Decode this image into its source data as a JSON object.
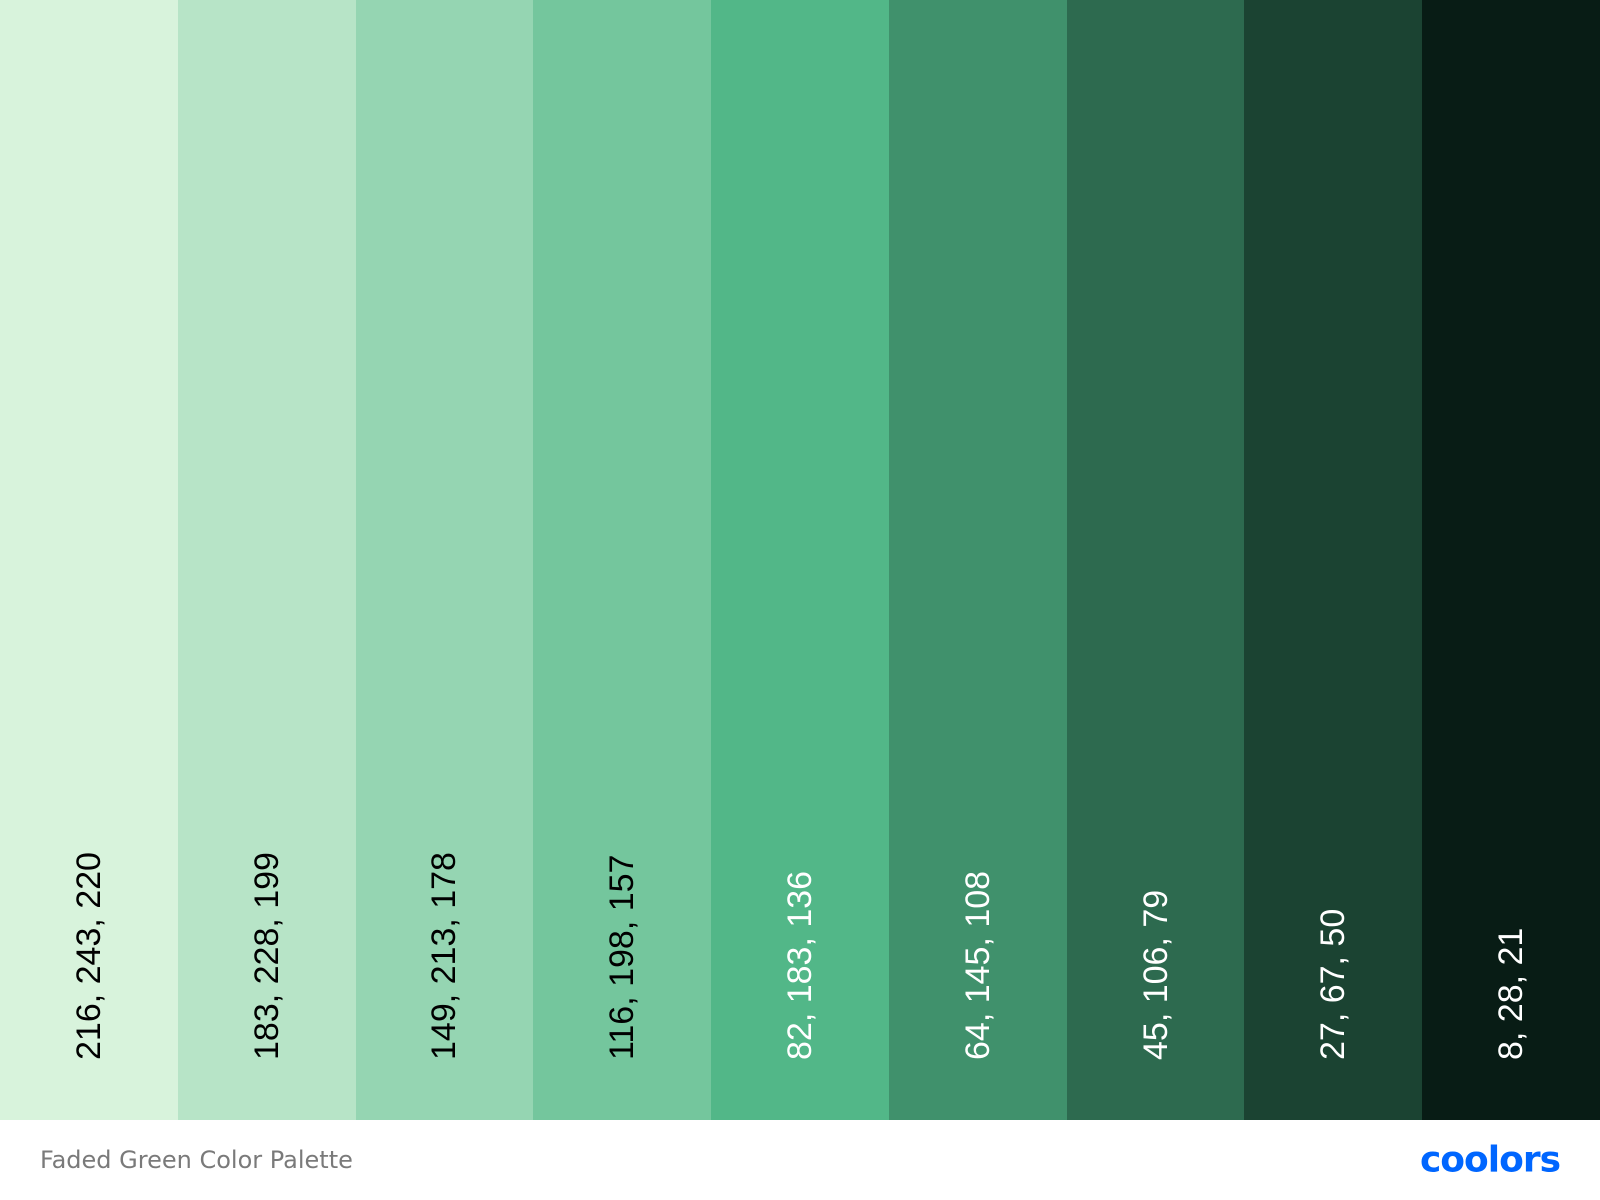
{
  "palette": {
    "name": "Faded Green Color Palette",
    "brand": "coolors",
    "brand_color": "#0066ff",
    "swatches": [
      {
        "color": "#d8f3dc",
        "label": "216, 243, 220",
        "text_color": "#000000"
      },
      {
        "color": "#b7e4c7",
        "label": "183, 228, 199",
        "text_color": "#000000"
      },
      {
        "color": "#95d5b2",
        "label": "149, 213, 178",
        "text_color": "#000000"
      },
      {
        "color": "#74c69d",
        "label": "116, 198, 157",
        "text_color": "#000000"
      },
      {
        "color": "#52b788",
        "label": "82, 183, 136",
        "text_color": "#ffffff"
      },
      {
        "color": "#40916c",
        "label": "64, 145, 108",
        "text_color": "#ffffff"
      },
      {
        "color": "#2d6a4f",
        "label": "45, 106, 79",
        "text_color": "#ffffff"
      },
      {
        "color": "#1b4332",
        "label": "27, 67, 50",
        "text_color": "#ffffff"
      },
      {
        "color": "#081c15",
        "label": "8, 28, 21",
        "text_color": "#ffffff"
      }
    ]
  }
}
